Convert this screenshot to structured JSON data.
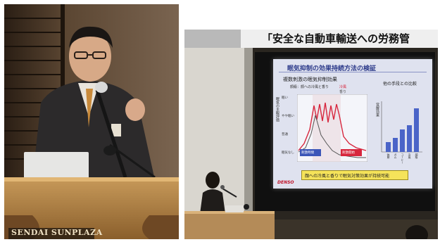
{
  "left_photo": {
    "podium_sign": "SENDAI SUNPLAZA"
  },
  "right_photo": {
    "banner_text": "「安全な自動車輸送への労務管",
    "slide": {
      "title": "眠気抑制の効果持続方法の検証",
      "left_panel_title": "複数刺激の眠気抑制効果",
      "legend_caption": "顔級：顔への冷風と香り",
      "legend_items": [
        "冷風",
        "香り"
      ],
      "y_axis_label": "眠気の主観評価",
      "y_ticks": [
        "眠い",
        "やや眠い",
        "普通",
        "眠気なし"
      ],
      "marker_labels": [
        "刺激時間",
        "刺激開始"
      ],
      "right_panel_title": "他の手段との比較",
      "right_y_label": "覚醒効果",
      "bar_labels": [
        "休憩",
        "ガム",
        "コーヒー",
        "冷風",
        "顔級"
      ],
      "footer_text": "顔への冷風と香りで眠気対策効果が持続可能",
      "brand": "DENSO"
    }
  },
  "colors": {
    "slide_bg": "#dfe2ef",
    "slide_title": "#2c3a8a",
    "accent_red": "#d7263d",
    "bar_blue": "#4a64c8",
    "footer_yellow": "#f5e35a"
  }
}
